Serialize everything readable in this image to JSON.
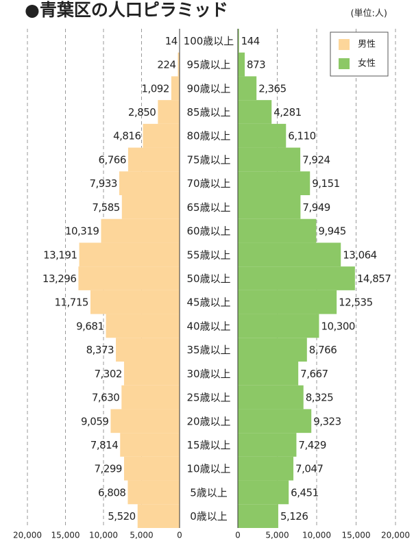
{
  "chart_data": {
    "type": "bar",
    "orientation": "horizontal",
    "title": "●青葉区の人口ピラミッド",
    "unit_note": "(単位:人)",
    "categories": [
      "100歳以上",
      "95歳以上",
      "90歳以上",
      "85歳以上",
      "80歳以上",
      "75歳以上",
      "70歳以上",
      "65歳以上",
      "60歳以上",
      "55歳以上",
      "50歳以上",
      "45歳以上",
      "40歳以上",
      "35歳以上",
      "30歳以上",
      "25歳以上",
      "20歳以上",
      "15歳以上",
      "10歳以上",
      "5歳以上",
      "0歳以上"
    ],
    "series": [
      {
        "name": "男性",
        "color": "#fdd69a",
        "values": [
          14,
          224,
          1092,
          2850,
          4816,
          6766,
          7933,
          7585,
          10319,
          13191,
          13296,
          11715,
          9681,
          8373,
          7302,
          7630,
          9059,
          7814,
          7299,
          6808,
          5520
        ],
        "value_labels": [
          "14",
          "224",
          "1,092",
          "2,850",
          "4,816",
          "6,766",
          "7,933",
          "7,585",
          "10,319",
          "13,191",
          "13,296",
          "11,715",
          "9,681",
          "8,373",
          "7,302",
          "7,630",
          "9,059",
          "7,814",
          "7,299",
          "6,808",
          "5,520"
        ]
      },
      {
        "name": "女性",
        "color": "#8cc866",
        "values": [
          144,
          873,
          2365,
          4281,
          6110,
          7924,
          9151,
          7949,
          9945,
          13064,
          14857,
          12535,
          10300,
          8766,
          7667,
          8325,
          9323,
          7429,
          7047,
          6451,
          5126
        ],
        "value_labels": [
          "144",
          "873",
          "2,365",
          "4,281",
          "6,110",
          "7,924",
          "9,151",
          "7,949",
          "9,945",
          "13,064",
          "14,857",
          "12,535",
          "10,300",
          "8,766",
          "7,667",
          "8,325",
          "9,323",
          "7,429",
          "7,047",
          "6,451",
          "5,126"
        ]
      }
    ],
    "xlim": [
      0,
      20000
    ],
    "xticks": [
      0,
      {
        "value": 5000,
        "label": "5,000"
      },
      {
        "value": 10000,
        "label": "10,000"
      },
      {
        "value": 15000,
        "label": "15,000"
      },
      {
        "value": 20000,
        "label": "20,000"
      }
    ],
    "grid": true,
    "legend": "upper right"
  }
}
